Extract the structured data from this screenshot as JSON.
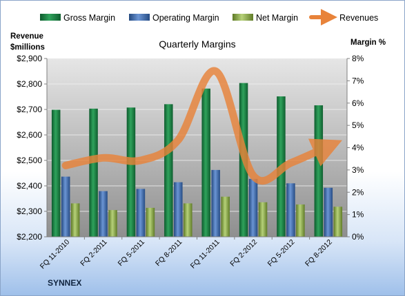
{
  "chart_data": {
    "type": "bar",
    "title": "Quarterly Margins",
    "brand": "SYNNEX",
    "left_axis_title": [
      "Revenue",
      "$millions"
    ],
    "right_axis_title": "Margin %",
    "categories": [
      "FQ 11-2010",
      "FQ 2-2011",
      "FQ 5-2011",
      "FQ 8-2011",
      "FQ 11-2011",
      "FQ 2-2012",
      "FQ 5-2012",
      "FQ 8-2012"
    ],
    "y_left": {
      "min": 2200,
      "max": 2900,
      "step": 100,
      "tick_labels": [
        "$2,200",
        "$2,300",
        "$2,400",
        "$2,500",
        "$2,600",
        "$2,700",
        "$2,800",
        "$2,900"
      ]
    },
    "y_right": {
      "min": 0,
      "max": 8,
      "step": 1,
      "tick_labels": [
        "0%",
        "1%",
        "2%",
        "3%",
        "4%",
        "5%",
        "6%",
        "7%",
        "8%"
      ]
    },
    "grid": true,
    "legend_position": "top",
    "series": [
      {
        "name": "Gross Margin",
        "axis": "right",
        "color": "#1e7a44",
        "values": [
          5.7,
          5.75,
          5.8,
          5.95,
          6.65,
          6.9,
          6.3,
          5.9
        ]
      },
      {
        "name": "Operating Margin",
        "axis": "right",
        "color": "#3f6fb5",
        "values": [
          2.7,
          2.05,
          2.15,
          2.45,
          3.0,
          2.6,
          2.4,
          2.2
        ]
      },
      {
        "name": "Net Margin",
        "axis": "right",
        "color": "#8fb04c",
        "values": [
          1.5,
          1.2,
          1.3,
          1.5,
          1.8,
          1.55,
          1.45,
          1.35
        ]
      },
      {
        "name": "Revenues",
        "axis": "left",
        "type": "line",
        "color": "#e8833a",
        "values": [
          2480,
          2510,
          2500,
          2580,
          2850,
          2440,
          2490,
          2555
        ]
      }
    ]
  }
}
